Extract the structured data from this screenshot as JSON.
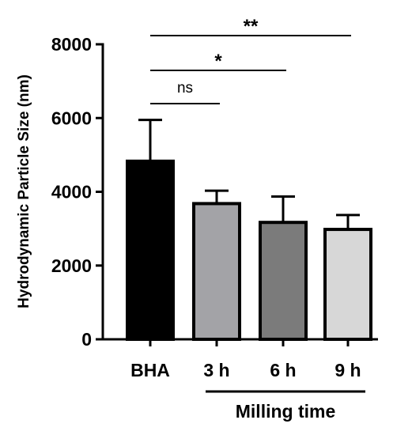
{
  "chart_data": {
    "type": "bar",
    "categories": [
      "BHA",
      "3 h",
      "6 h",
      "9 h"
    ],
    "values": [
      4830,
      3680,
      3170,
      2980
    ],
    "errors": [
      1120,
      350,
      700,
      390
    ],
    "ylabel": "Hydrodynamic Particle Size (nm)",
    "xlabel": "",
    "ylim": [
      0,
      8000
    ],
    "yticks": [
      0,
      2000,
      4000,
      6000,
      8000
    ],
    "bar_colors": [
      "#000000",
      "#a3a3a7",
      "#7b7b7b",
      "#d7d7d7"
    ],
    "group_label": "Milling time",
    "group_span": [
      "3 h",
      "9 h"
    ],
    "significance": [
      {
        "from": "BHA",
        "to": "3 h",
        "label": "ns"
      },
      {
        "from": "BHA",
        "to": "6 h",
        "label": "*"
      },
      {
        "from": "BHA",
        "to": "9 h",
        "label": "**"
      }
    ],
    "grid": false
  }
}
